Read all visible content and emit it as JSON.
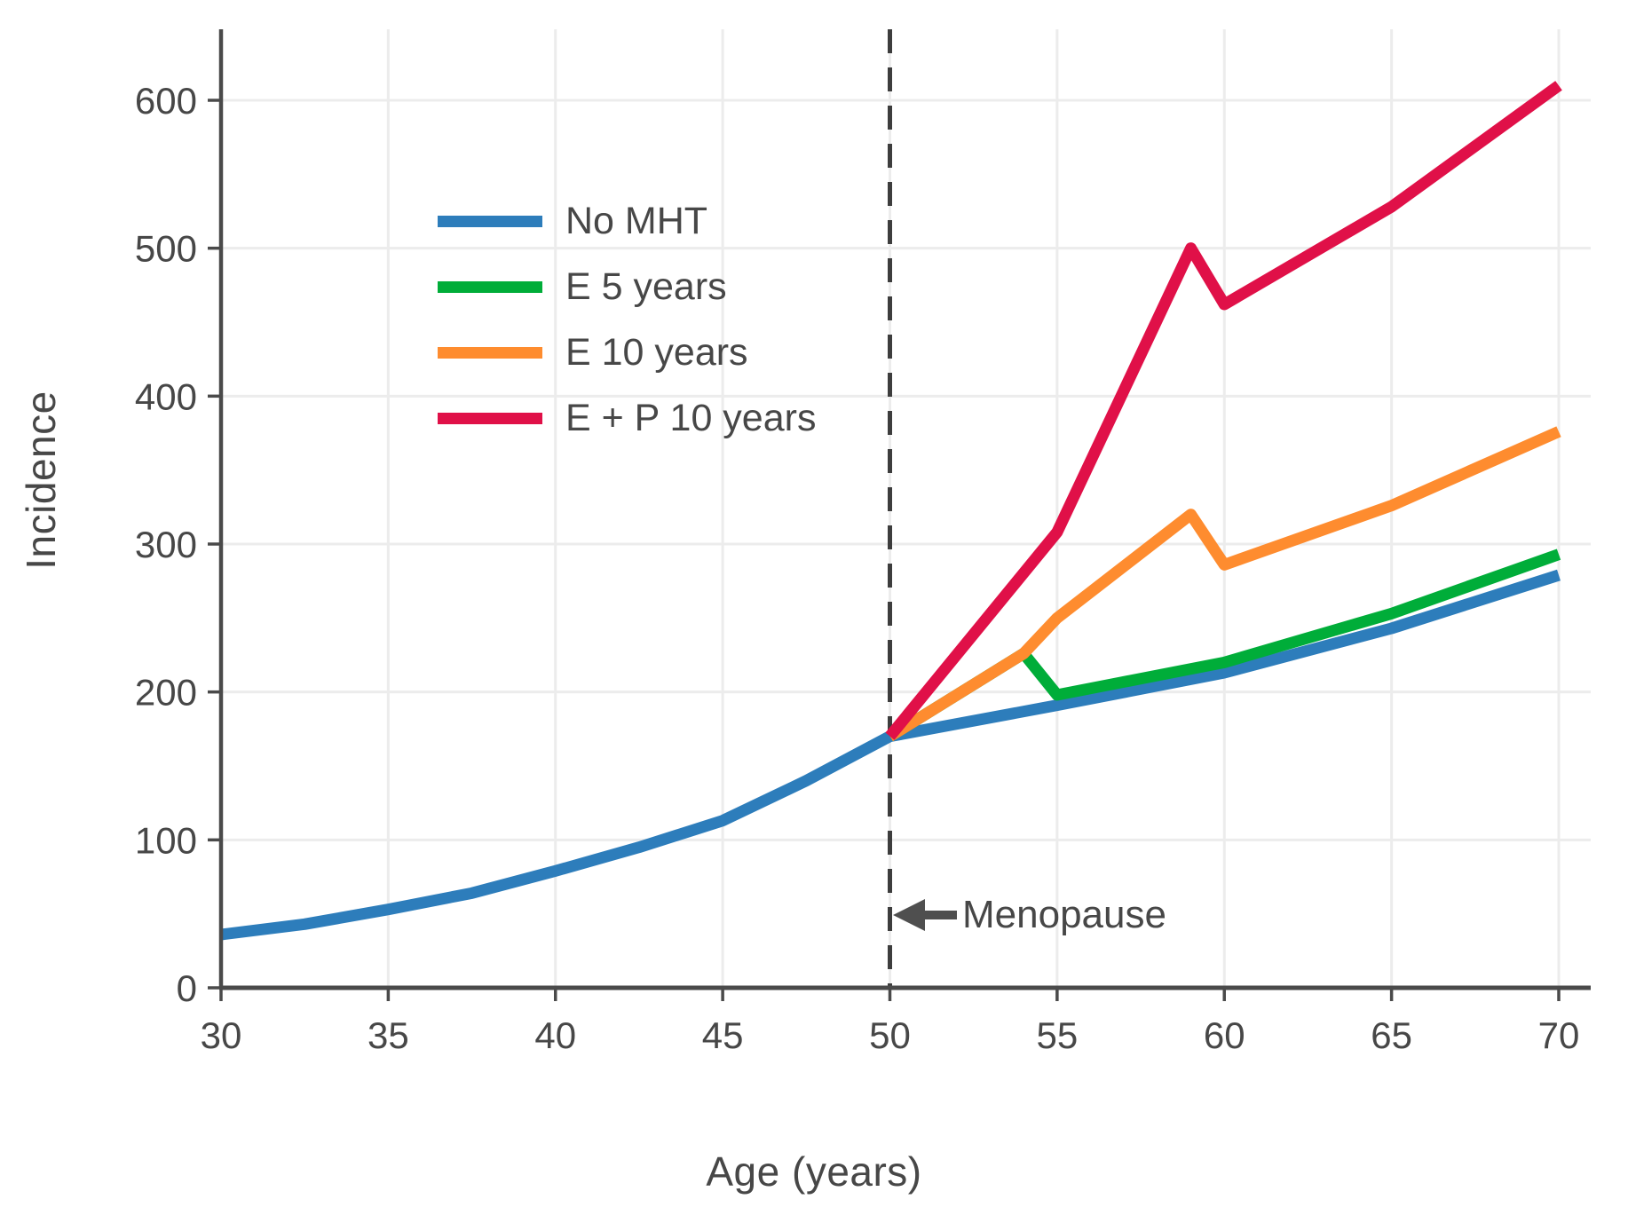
{
  "chart_data": {
    "type": "line",
    "title": "",
    "xlabel": "Age (years)",
    "ylabel": "Incidence",
    "xlim": [
      30,
      70
    ],
    "ylim": [
      0,
      650
    ],
    "x_ticks": [
      30,
      35,
      40,
      45,
      50,
      55,
      60,
      65,
      70
    ],
    "y_ticks": [
      0,
      100,
      200,
      300,
      400,
      500,
      600
    ],
    "grid": true,
    "legend_position": "upper-left-inside",
    "background_color": "#ffffff",
    "axis_color": "#4a4a4a",
    "grid_color": "#ececec",
    "text_color": "#474747",
    "series": [
      {
        "name": "No MHT",
        "color": "#2d7dbb",
        "points": [
          [
            30,
            36
          ],
          [
            32.5,
            43
          ],
          [
            35,
            53
          ],
          [
            37.5,
            64
          ],
          [
            40,
            79
          ],
          [
            42.5,
            95
          ],
          [
            45,
            113
          ],
          [
            47.5,
            140
          ],
          [
            50,
            170
          ],
          [
            55,
            191
          ],
          [
            60,
            213
          ],
          [
            65,
            243
          ],
          [
            70,
            279
          ]
        ]
      },
      {
        "name": "E 5 years",
        "color": "#00ad39",
        "points": [
          [
            50,
            170
          ],
          [
            54,
            226
          ],
          [
            55,
            198
          ],
          [
            60,
            220
          ],
          [
            65,
            253
          ],
          [
            70,
            293
          ]
        ]
      },
      {
        "name": "E 10 years",
        "color": "#fe8c2f",
        "points": [
          [
            50,
            170
          ],
          [
            54,
            226
          ],
          [
            55,
            250
          ],
          [
            59,
            320
          ],
          [
            60,
            286
          ],
          [
            65,
            326
          ],
          [
            70,
            376
          ]
        ]
      },
      {
        "name": "E + P 10 years",
        "color": "#e01048",
        "points": [
          [
            50,
            170
          ],
          [
            55,
            308
          ],
          [
            59,
            500
          ],
          [
            60,
            462
          ],
          [
            65,
            528
          ],
          [
            70,
            610
          ]
        ]
      }
    ],
    "annotation": {
      "label": "Menopause",
      "vline_x": 50,
      "vline_style": "dashed",
      "vline_color": "#3d3d3d",
      "arrow_direction": "left",
      "arrow_color": "#4f4f4f"
    }
  }
}
